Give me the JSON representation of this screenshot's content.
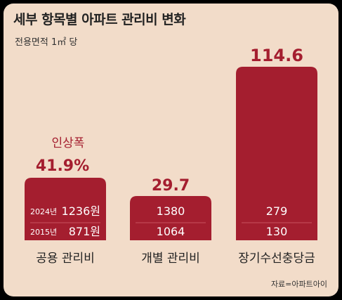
{
  "chart_data": {
    "type": "bar",
    "title": "세부 항목별 아파트 관리비 변화",
    "subtitle": "전용면적 1㎡ 당",
    "categories": [
      "공용 관리비",
      "개별 관리비",
      "장기수선충당금"
    ],
    "values": [
      41.9,
      29.7,
      114.6
    ],
    "value_labels": [
      "41.9%",
      "29.7",
      "114.6"
    ],
    "highlight_label": "인상폭",
    "series": [
      {
        "name": "2024년",
        "values": [
          "1236원",
          "1380",
          "279"
        ]
      },
      {
        "name": "2015년",
        "values": [
          "871원",
          "1064",
          "130"
        ]
      }
    ],
    "source": "자료=아파트아이",
    "colors": {
      "bar": "#a41e2f",
      "label": "#a41e2f",
      "background": "#f2dcc9"
    }
  }
}
